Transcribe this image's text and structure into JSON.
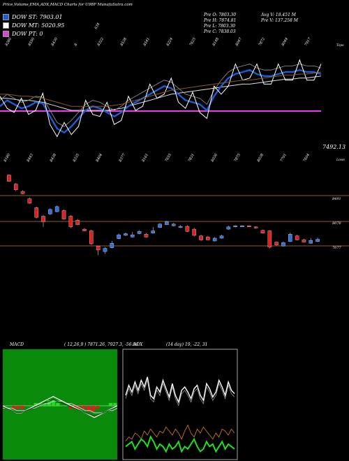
{
  "header": {
    "title": "Price,Volume,EMA,ADX,MACD Charts for U9BF MunafaSutra.com"
  },
  "legend": [
    {
      "label": "DOW ST: 7903.01",
      "color": "#1f5bd6"
    },
    {
      "label": "DOW MT: 5020.95",
      "color": "#ffffff"
    },
    {
      "label": "DOW PT: 0",
      "color": "#e040e0"
    }
  ],
  "stats": {
    "open": "Pre  O: 7803.30",
    "high": "Pre  H: 7874.81",
    "low": "Pre  L: 7803.30",
    "close": "Pre  C: 7838.03",
    "avg_volume": "Avg V: 18.451 M",
    "prev_volume": "Pre  V: 137.258  M"
  },
  "top_panel": {
    "top_labels": [
      "8280",
      "8550",
      "8430",
      "8",
      "8322",
      "8538",
      "8541",
      "8224",
      "7625",
      "8148",
      "8047",
      "7872",
      "8044",
      "7917"
    ],
    "bottom_labels": [
      "8180",
      "8443",
      "8438",
      "8335",
      "8404",
      "8377",
      "8161",
      "7655",
      "7831",
      "8036",
      "7875",
      "8038",
      "7701",
      "7604"
    ],
    "last_price": "7492.13",
    "top_note": "Tops",
    "low_note": "Lows",
    "mid_note": "634"
  },
  "candle_panel": {
    "levels": [
      "8491",
      "8076",
      "7677"
    ]
  },
  "macd": {
    "label": "MACD",
    "params": "( 12,26,9 ) 7871.26,  7927.3,  -56.04"
  },
  "adx": {
    "label": "ADX",
    "params": "(14  day) 19,  -22,  31"
  },
  "chart_data": [
    {
      "type": "line",
      "name": "price-ema",
      "series": [
        {
          "name": "DOW ST",
          "values": [
            40,
            46,
            42,
            38,
            40,
            44,
            43,
            30,
            18,
            14,
            20,
            28,
            36,
            40,
            38,
            34,
            30,
            34,
            40,
            44,
            48,
            52,
            56,
            60,
            58,
            52,
            46,
            44,
            42,
            36,
            50,
            60,
            68,
            72,
            74,
            76,
            72,
            70,
            70,
            72,
            74,
            74,
            76,
            74,
            74,
            72
          ]
        },
        {
          "name": "DOW MT",
          "values": [
            48,
            48,
            47,
            46,
            46,
            45,
            44,
            42,
            40,
            38,
            36,
            36,
            36,
            36,
            36,
            36,
            37,
            38,
            40,
            42,
            44,
            46,
            48,
            50,
            52,
            53,
            54,
            55,
            56,
            57,
            58,
            59,
            60,
            61,
            62,
            62,
            63,
            64,
            65,
            66,
            67,
            67,
            68,
            68,
            69,
            70
          ]
        },
        {
          "name": "DOW PT",
          "values": [
            0,
            0,
            0,
            0,
            0,
            0,
            0,
            0,
            0,
            0,
            0,
            0,
            0,
            0,
            0,
            0,
            0,
            0,
            0,
            0,
            0,
            0,
            0,
            0,
            0,
            0,
            0,
            0,
            0,
            0,
            0,
            0,
            0,
            0,
            0,
            0,
            0,
            0,
            0,
            0,
            0,
            0,
            0,
            0,
            0,
            0
          ]
        }
      ]
    },
    {
      "type": "candlestick",
      "levels": [
        8491,
        8076,
        7677
      ],
      "candles": [
        {
          "o": 8980,
          "c": 8870,
          "h": 8990,
          "l": 8860
        },
        {
          "o": 8820,
          "c": 8720,
          "h": 8840,
          "l": 8700
        },
        {
          "o": 8690,
          "c": 8650,
          "h": 8710,
          "l": 8640
        },
        {
          "o": 8560,
          "c": 8480,
          "h": 8580,
          "l": 8470
        },
        {
          "o": 8400,
          "c": 8230,
          "h": 8420,
          "l": 8210
        },
        {
          "o": 8250,
          "c": 8150,
          "h": 8270,
          "l": 8060
        },
        {
          "o": 8290,
          "c": 8370,
          "h": 8390,
          "l": 8270
        },
        {
          "o": 8330,
          "c": 8420,
          "h": 8440,
          "l": 8320
        },
        {
          "o": 8350,
          "c": 8200,
          "h": 8370,
          "l": 8190
        },
        {
          "o": 8250,
          "c": 8060,
          "h": 8270,
          "l": 8040
        },
        {
          "o": 8180,
          "c": 8100,
          "h": 8200,
          "l": 8090
        },
        {
          "o": 8020,
          "c": 7990,
          "h": 8040,
          "l": 7980
        },
        {
          "o": 7990,
          "c": 7760,
          "h": 8010,
          "l": 7740
        },
        {
          "o": 7720,
          "c": 7650,
          "h": 7730,
          "l": 7560
        },
        {
          "o": 7620,
          "c": 7680,
          "h": 7700,
          "l": 7580
        },
        {
          "o": 7690,
          "c": 7770,
          "h": 7810,
          "l": 7680
        },
        {
          "o": 7850,
          "c": 7920,
          "h": 7940,
          "l": 7840
        },
        {
          "o": 7910,
          "c": 7940,
          "h": 7960,
          "l": 7900
        },
        {
          "o": 7880,
          "c": 7920,
          "h": 7970,
          "l": 7870
        },
        {
          "o": 7940,
          "c": 7980,
          "h": 8000,
          "l": 7930
        },
        {
          "o": 7930,
          "c": 7880,
          "h": 7950,
          "l": 7870
        },
        {
          "o": 7950,
          "c": 7990,
          "h": 8060,
          "l": 7940
        },
        {
          "o": 8050,
          "c": 8110,
          "h": 8130,
          "l": 8040
        },
        {
          "o": 8100,
          "c": 8150,
          "h": 8170,
          "l": 8090
        },
        {
          "o": 8080,
          "c": 8110,
          "h": 8130,
          "l": 8070
        },
        {
          "o": 8050,
          "c": 8070,
          "h": 8090,
          "l": 8040
        },
        {
          "o": 8070,
          "c": 7980,
          "h": 8090,
          "l": 7970
        },
        {
          "o": 8020,
          "c": 7910,
          "h": 8040,
          "l": 7890
        },
        {
          "o": 7900,
          "c": 7830,
          "h": 7920,
          "l": 7810
        },
        {
          "o": 7880,
          "c": 7830,
          "h": 7900,
          "l": 7820
        },
        {
          "o": 7810,
          "c": 7860,
          "h": 7880,
          "l": 7800
        },
        {
          "o": 7860,
          "c": 7900,
          "h": 7920,
          "l": 7850
        },
        {
          "o": 8020,
          "c": 8060,
          "h": 8080,
          "l": 8010
        },
        {
          "o": 8060,
          "c": 8080,
          "h": 8090,
          "l": 8050
        },
        {
          "o": 8070,
          "c": 8080,
          "h": 8090,
          "l": 8060
        },
        {
          "o": 8080,
          "c": 8070,
          "h": 8090,
          "l": 8060
        },
        {
          "o": 8060,
          "c": 8040,
          "h": 8070,
          "l": 8030
        },
        {
          "o": 8000,
          "c": 7950,
          "h": 8010,
          "l": 7940
        },
        {
          "o": 7990,
          "c": 7700,
          "h": 8000,
          "l": 7680
        },
        {
          "o": 7790,
          "c": 7740,
          "h": 7800,
          "l": 7730
        },
        {
          "o": 7720,
          "c": 7780,
          "h": 7800,
          "l": 7710
        },
        {
          "o": 7800,
          "c": 7930,
          "h": 7960,
          "l": 7790
        },
        {
          "o": 7900,
          "c": 7830,
          "h": 7920,
          "l": 7820
        },
        {
          "o": 7830,
          "c": 7790,
          "h": 7850,
          "l": 7780
        },
        {
          "o": 7770,
          "c": 7820,
          "h": 7860,
          "l": 7760
        },
        {
          "o": 7800,
          "c": 7840,
          "h": 7870,
          "l": 7790
        }
      ]
    },
    {
      "type": "line",
      "name": "macd",
      "series": [
        {
          "name": "MACD",
          "values": [
            0,
            -1,
            -2,
            -3,
            -3,
            -2,
            -1,
            0,
            1,
            2,
            3,
            4,
            3,
            2,
            1,
            0,
            -1,
            -2,
            -3,
            -4,
            -5,
            -4,
            -3,
            -2,
            -1,
            0
          ]
        },
        {
          "name": "Signal",
          "values": [
            -1,
            -1,
            -1,
            -2,
            -2,
            -2,
            -1,
            -1,
            0,
            1,
            1,
            2,
            2,
            2,
            1,
            1,
            0,
            -1,
            -2,
            -2,
            -3,
            -3,
            -3,
            -2,
            -2,
            -1
          ]
        },
        {
          "name": "Histogram",
          "values": [
            0,
            0,
            -1,
            -1,
            -1,
            0,
            0,
            1,
            1,
            1,
            2,
            2,
            1,
            0,
            0,
            -1,
            -1,
            -1,
            -1,
            -2,
            -2,
            -1,
            0,
            0,
            1,
            1
          ]
        }
      ]
    },
    {
      "type": "line",
      "name": "adx",
      "series": [
        {
          "name": "ADX",
          "values": [
            30,
            42,
            34,
            46,
            36,
            48,
            40,
            52,
            30,
            26,
            40,
            34,
            48,
            38,
            28,
            44,
            30,
            22,
            36,
            40,
            34,
            26,
            38,
            42,
            30,
            24,
            44,
            38,
            28,
            34,
            48,
            40,
            30,
            46,
            36,
            32
          ]
        },
        {
          "name": "+DI",
          "values": [
            14,
            16,
            18,
            12,
            16,
            20,
            18,
            14,
            22,
            18,
            12,
            16,
            14,
            10,
            16,
            12,
            14,
            18,
            10,
            14,
            12,
            16,
            20,
            14,
            10,
            12,
            18,
            14,
            16,
            10,
            14,
            18,
            12,
            16,
            14,
            12
          ]
        },
        {
          "name": "-DI",
          "values": [
            18,
            22,
            20,
            26,
            24,
            20,
            28,
            24,
            30,
            26,
            22,
            28,
            26,
            32,
            28,
            24,
            30,
            26,
            20,
            28,
            34,
            26,
            22,
            30,
            26,
            32,
            28,
            24,
            20,
            26,
            22,
            30,
            28,
            24,
            30,
            26
          ]
        }
      ]
    }
  ]
}
